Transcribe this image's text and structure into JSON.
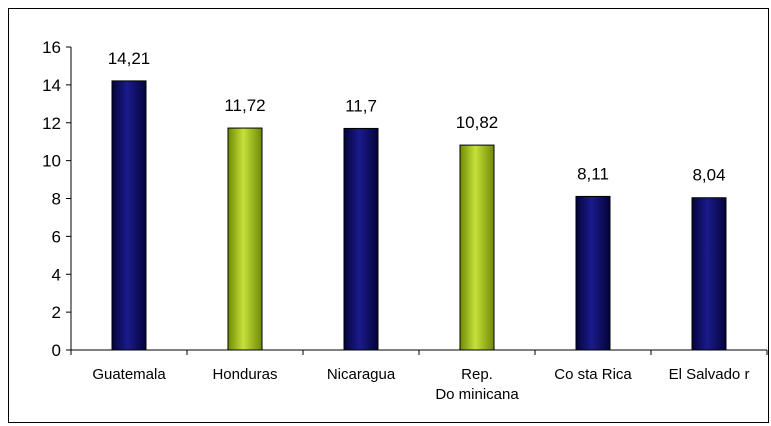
{
  "chart_data": {
    "type": "bar",
    "categories": [
      "Guatemala",
      "Honduras",
      "Nicaragua",
      "Rep. Dominicana",
      "Costa Rica",
      "El Salvador"
    ],
    "category_lines": [
      [
        "Guatemala"
      ],
      [
        "Honduras"
      ],
      [
        "Nicaragua"
      ],
      [
        "Rep.",
        "Do minicana"
      ],
      [
        "Co sta Rica"
      ],
      [
        "El Salvado r"
      ]
    ],
    "values": [
      14.21,
      11.72,
      11.7,
      10.82,
      8.11,
      8.04
    ],
    "data_labels": [
      "14,21",
      "11,72",
      "11,7",
      "10,82",
      "8,11",
      "8,04"
    ],
    "bar_colors": [
      "#0a0a6e",
      "#a6c417",
      "#0a0a6e",
      "#a6c417",
      "#0a0a6e",
      "#0a0a6e"
    ],
    "ylim": [
      0,
      16
    ],
    "yticks": [
      0,
      2,
      4,
      6,
      8,
      10,
      12,
      14,
      16
    ],
    "title": "",
    "xlabel": "",
    "ylabel": "",
    "grid": false,
    "legend": false
  },
  "colors": {
    "navy": "#0a0a6e",
    "lime": "#a6c417"
  }
}
